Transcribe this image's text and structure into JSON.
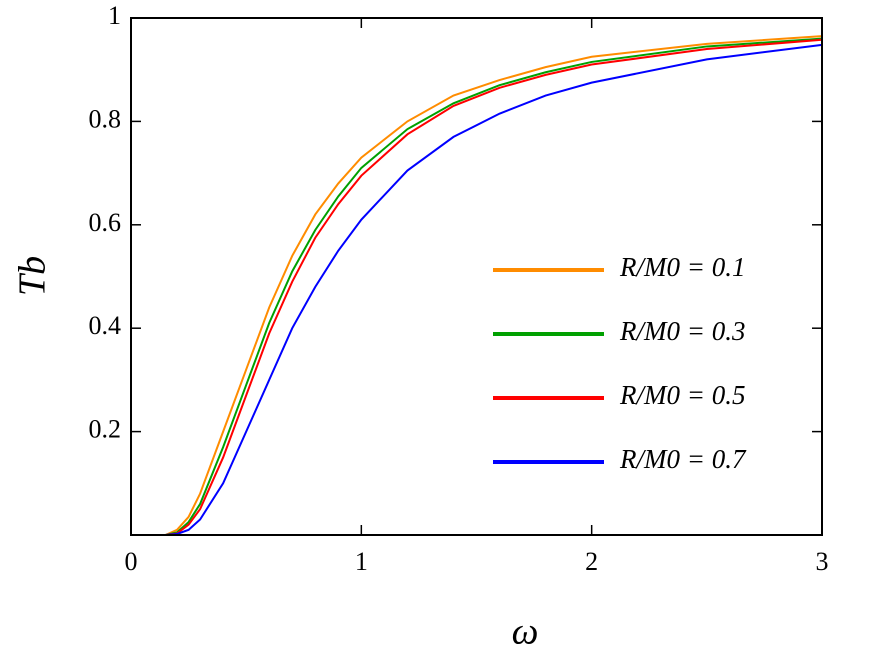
{
  "chart_data": {
    "type": "line",
    "xlabel": "ω",
    "ylabel": "Tb",
    "x": [
      0,
      0.15,
      0.2,
      0.25,
      0.3,
      0.4,
      0.5,
      0.6,
      0.7,
      0.8,
      0.9,
      1.0,
      1.2,
      1.4,
      1.6,
      1.8,
      2.0,
      2.5,
      3.0
    ],
    "series": [
      {
        "name": "R/M0 = 0.1",
        "color": "#ff8c00",
        "values": [
          0,
          0,
          0.01,
          0.035,
          0.08,
          0.2,
          0.32,
          0.44,
          0.54,
          0.62,
          0.68,
          0.73,
          0.8,
          0.85,
          0.88,
          0.905,
          0.925,
          0.95,
          0.965
        ]
      },
      {
        "name": "R/M0 = 0.3",
        "color": "#00a000",
        "values": [
          0,
          0,
          0.005,
          0.025,
          0.06,
          0.17,
          0.29,
          0.41,
          0.51,
          0.59,
          0.655,
          0.71,
          0.785,
          0.835,
          0.87,
          0.895,
          0.915,
          0.945,
          0.96
        ]
      },
      {
        "name": "R/M0 = 0.5",
        "color": "#ff0000",
        "values": [
          0,
          0,
          0.003,
          0.02,
          0.05,
          0.15,
          0.27,
          0.39,
          0.49,
          0.575,
          0.64,
          0.695,
          0.775,
          0.83,
          0.865,
          0.89,
          0.91,
          0.94,
          0.958
        ]
      },
      {
        "name": "R/M0 = 0.7",
        "color": "#0000ff",
        "values": [
          0,
          0,
          0.002,
          0.01,
          0.03,
          0.1,
          0.2,
          0.3,
          0.4,
          0.48,
          0.55,
          0.61,
          0.705,
          0.77,
          0.815,
          0.85,
          0.875,
          0.92,
          0.948
        ]
      }
    ],
    "xlim": [
      0,
      3
    ],
    "ylim": [
      0,
      1
    ],
    "xticks": [
      0,
      1,
      2,
      3
    ],
    "yticks": [
      0.2,
      0.4,
      0.6,
      0.8,
      1
    ],
    "legend": "right"
  }
}
